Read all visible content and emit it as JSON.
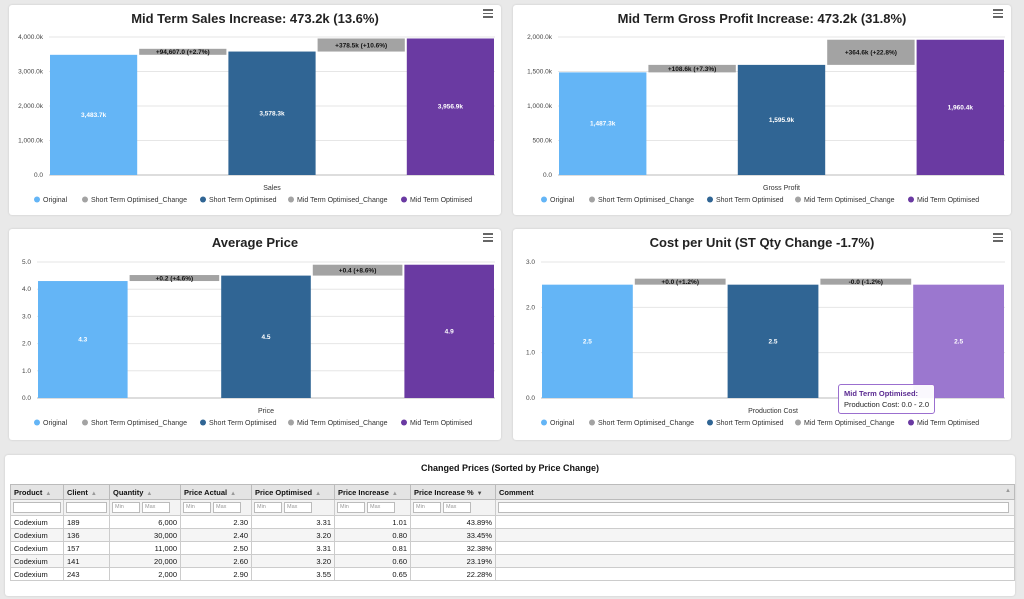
{
  "legend": [
    "Original",
    "Short Term Optimised_Change",
    "Short Term Optimised",
    "Mid Term Optimised_Change",
    "Mid Term Optimised"
  ],
  "chart_data": [
    {
      "type": "bar",
      "title": "Mid Term Sales Increase: 473.2k (13.6%)",
      "xlabel": "Sales",
      "ylim": [
        0,
        4000
      ],
      "yticks": [
        "0.0",
        "1,000.0k",
        "2,000.0k",
        "3,000.0k",
        "4,000.0k"
      ],
      "series": [
        {
          "name": "Original",
          "base": 0,
          "value": 3483.7,
          "label": "3,483.7k"
        },
        {
          "name": "Short Term Optimised_Change",
          "base": 3483.7,
          "value": 94.6,
          "label": "+94,607.0 (+2.7%)"
        },
        {
          "name": "Short Term Optimised",
          "base": 0,
          "value": 3578.3,
          "label": "3,578.3k"
        },
        {
          "name": "Mid Term Optimised_Change",
          "base": 3578.3,
          "value": 378.5,
          "label": "+378.5k (+10.6%)"
        },
        {
          "name": "Mid Term Optimised",
          "base": 0,
          "value": 3956.9,
          "label": "3,956.9k"
        }
      ]
    },
    {
      "type": "bar",
      "title": "Mid Term Gross Profit Increase: 473.2k (31.8%)",
      "xlabel": "Gross Profit",
      "ylim": [
        0,
        2000
      ],
      "yticks": [
        "0.0",
        "500.0k",
        "1,000.0k",
        "1,500.0k",
        "2,000.0k"
      ],
      "series": [
        {
          "name": "Original",
          "base": 0,
          "value": 1487.3,
          "label": "1,487.3k"
        },
        {
          "name": "Short Term Optimised_Change",
          "base": 1487.3,
          "value": 108.6,
          "label": "+108.6k (+7.3%)"
        },
        {
          "name": "Short Term Optimised",
          "base": 0,
          "value": 1595.9,
          "label": "1,595.9k"
        },
        {
          "name": "Mid Term Optimised_Change",
          "base": 1595.9,
          "value": 364.6,
          "label": "+364.6k (+22.8%)"
        },
        {
          "name": "Mid Term Optimised",
          "base": 0,
          "value": 1960.4,
          "label": "1,960.4k"
        }
      ]
    },
    {
      "type": "bar",
      "title": "Average Price",
      "xlabel": "Price",
      "ylim": [
        0,
        5
      ],
      "yticks": [
        "0.0",
        "1.0",
        "2.0",
        "3.0",
        "4.0",
        "5.0"
      ],
      "series": [
        {
          "name": "Original",
          "base": 0,
          "value": 4.3,
          "label": "4.3"
        },
        {
          "name": "Short Term Optimised_Change",
          "base": 4.3,
          "value": 0.2,
          "label": "+0.2 (+4.6%)"
        },
        {
          "name": "Short Term Optimised",
          "base": 0,
          "value": 4.5,
          "label": "4.5"
        },
        {
          "name": "Mid Term Optimised_Change",
          "base": 4.5,
          "value": 0.4,
          "label": "+0.4 (+8.6%)"
        },
        {
          "name": "Mid Term Optimised",
          "base": 0,
          "value": 4.9,
          "label": "4.9"
        }
      ]
    },
    {
      "type": "bar",
      "title": "Cost per Unit (ST Qty Change -1.7%)",
      "xlabel": "Production Cost",
      "ylim": [
        0,
        3
      ],
      "yticks": [
        "0.0",
        "1.0",
        "2.0",
        "3.0"
      ],
      "series": [
        {
          "name": "Original",
          "base": 0,
          "value": 2.5,
          "label": "2.5"
        },
        {
          "name": "Short Term Optimised_Change",
          "base": 2.5,
          "value": 0.0,
          "label": "+0.0 (+1.2%)"
        },
        {
          "name": "Short Term Optimised",
          "base": 0,
          "value": 2.5,
          "label": "2.5"
        },
        {
          "name": "Mid Term Optimised_Change",
          "base": 2.5,
          "value": 0.0,
          "label": "-0.0 (-1.2%)"
        },
        {
          "name": "Mid Term Optimised",
          "base": 0,
          "value": 2.5,
          "label": "2.5"
        }
      ],
      "tooltip": {
        "title": "Mid Term Optimised:",
        "label": "Production Cost:",
        "value": "0.0 - 2.0"
      }
    }
  ],
  "colors": [
    "#64b5f6",
    "#a3a3a3",
    "#306594",
    "#a3a3a3",
    "#6a3aa2"
  ],
  "highlight_color": "#9b77cf",
  "table": {
    "title": "Changed Prices (Sorted by Price Change)",
    "columns": [
      "Product",
      "Client",
      "Quantity",
      "Price Actual",
      "Price Optimised",
      "Price Increase",
      "Price Increase %",
      "Comment"
    ],
    "filter_min": "Min",
    "filter_max": "Max",
    "rows": [
      [
        "Codexium",
        "189",
        "6,000",
        "2.30",
        "3.31",
        "1.01",
        "43.89%",
        ""
      ],
      [
        "Codexium",
        "136",
        "30,000",
        "2.40",
        "3.20",
        "0.80",
        "33.45%",
        ""
      ],
      [
        "Codexium",
        "157",
        "11,000",
        "2.50",
        "3.31",
        "0.81",
        "32.38%",
        ""
      ],
      [
        "Codexium",
        "141",
        "20,000",
        "2.60",
        "3.20",
        "0.60",
        "23.19%",
        ""
      ],
      [
        "Codexium",
        "243",
        "2,000",
        "2.90",
        "3.55",
        "0.65",
        "22.28%",
        ""
      ]
    ]
  }
}
